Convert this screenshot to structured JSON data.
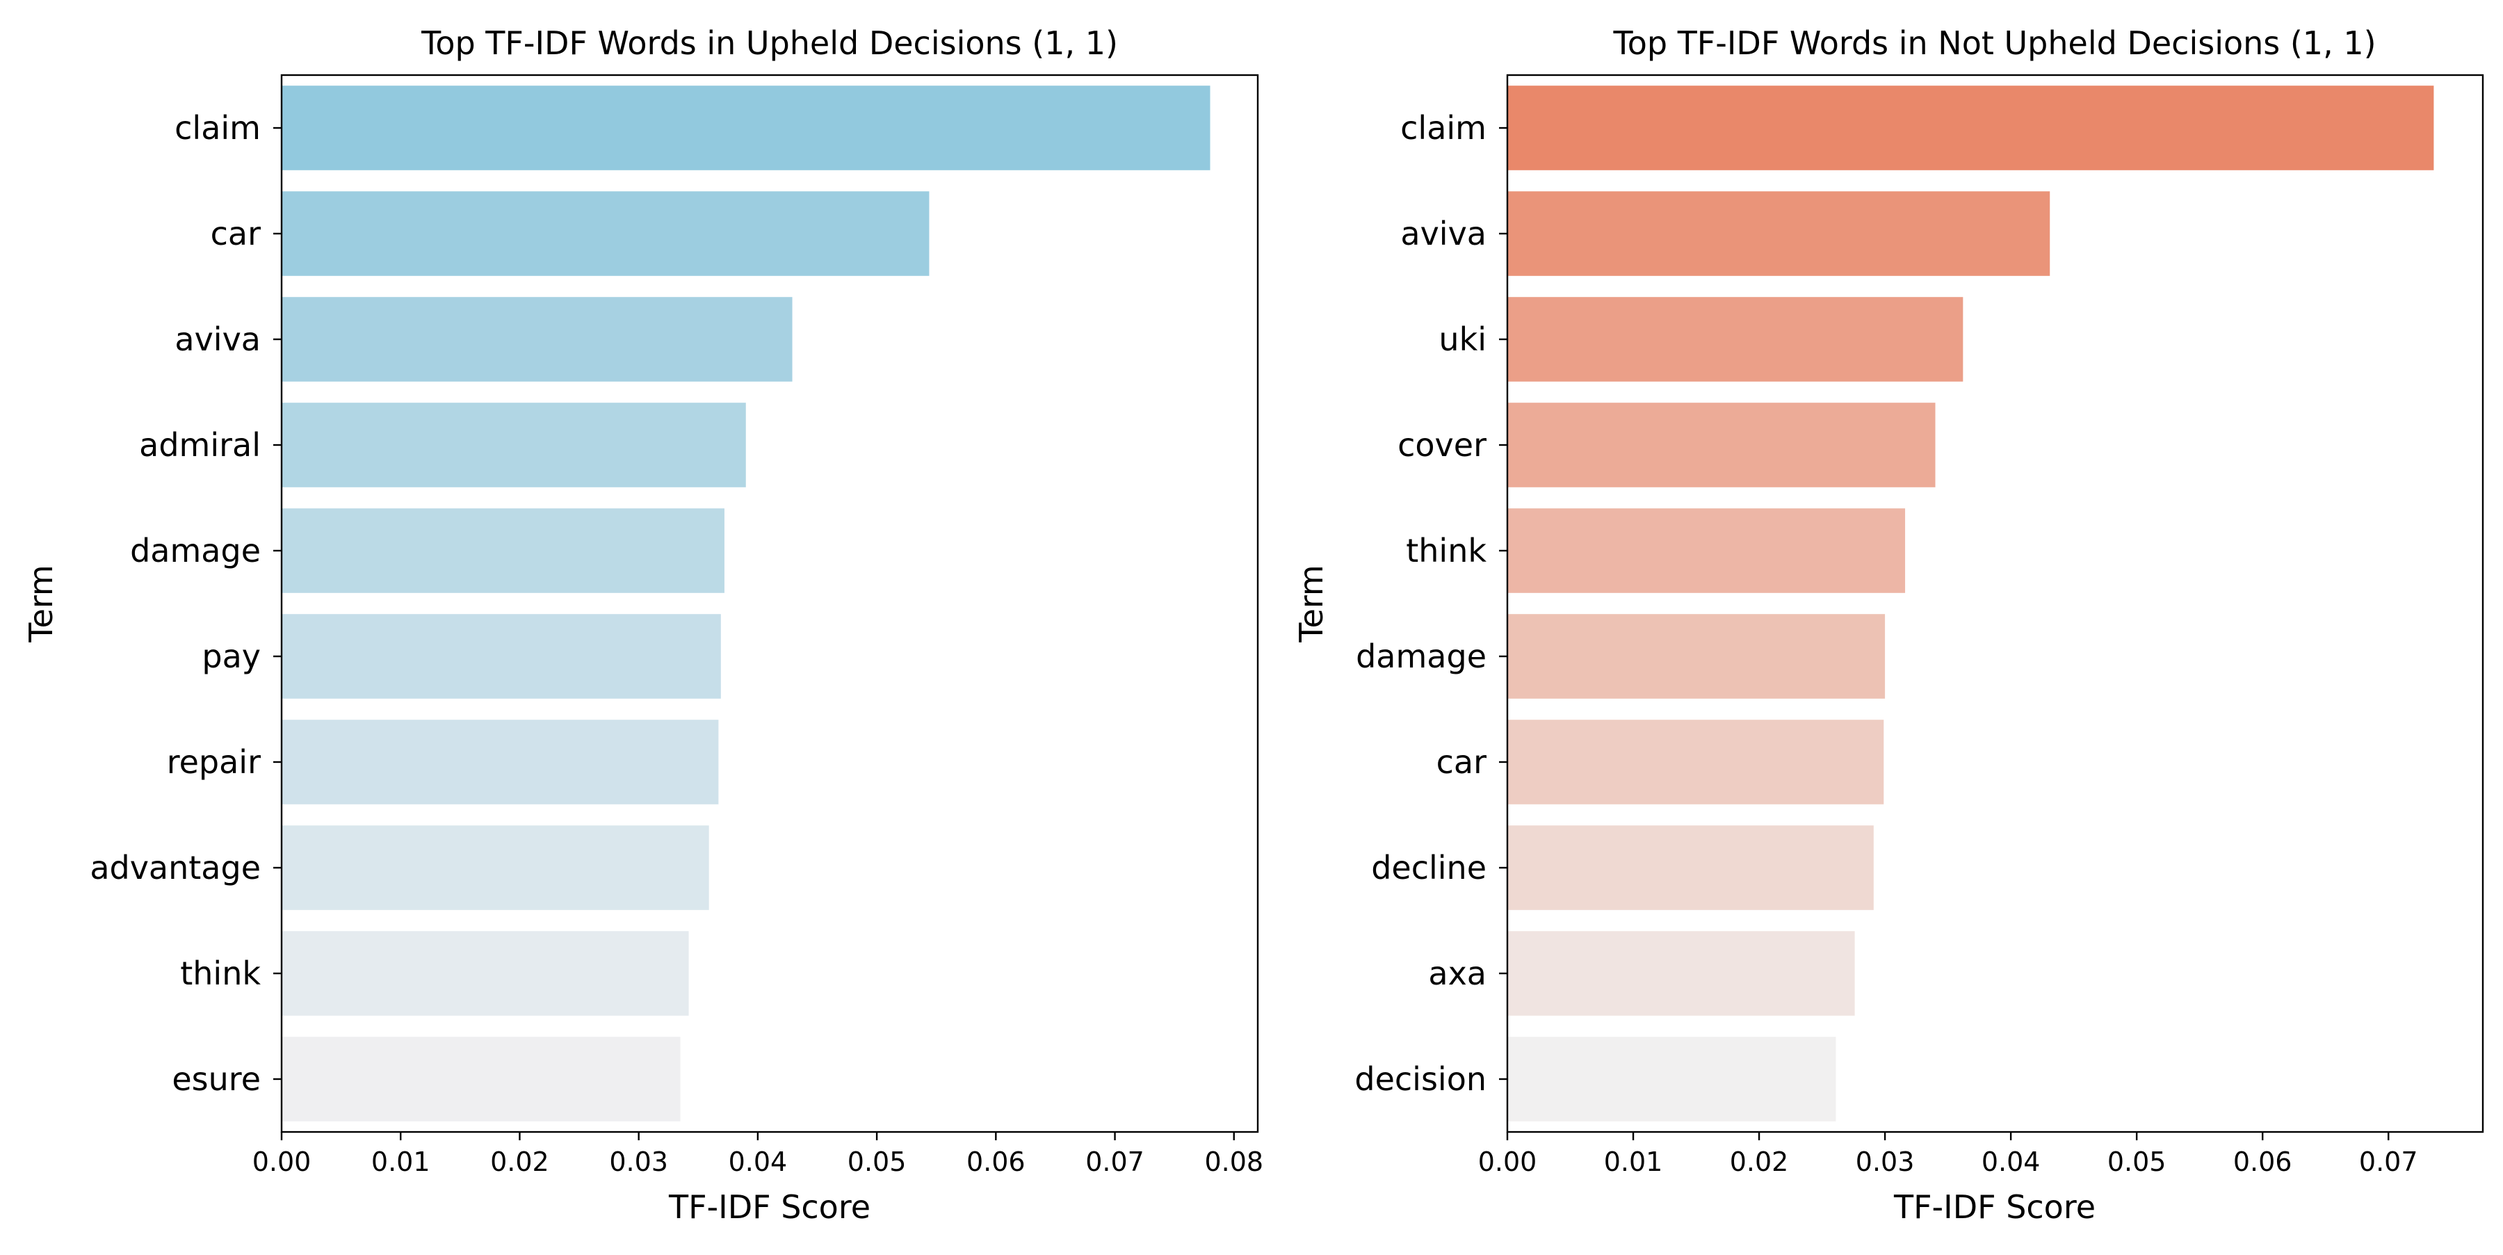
{
  "chart_data": [
    {
      "type": "bar",
      "orientation": "horizontal",
      "title": "Top TF-IDF Words in Upheld Decisions (1, 1)",
      "xlabel": "TF-IDF Score",
      "ylabel": "Term",
      "categories": [
        "claim",
        "car",
        "aviva",
        "admiral",
        "damage",
        "pay",
        "repair",
        "advantage",
        "think",
        "esure"
      ],
      "values": [
        0.078,
        0.0544,
        0.0429,
        0.039,
        0.0372,
        0.0369,
        0.0367,
        0.0359,
        0.0342,
        0.0335
      ],
      "xlim": [
        0,
        0.082
      ],
      "xticks": [
        0.0,
        0.01,
        0.02,
        0.03,
        0.04,
        0.05,
        0.06,
        0.07,
        0.08
      ],
      "xtick_labels": [
        "0.00",
        "0.01",
        "0.02",
        "0.03",
        "0.04",
        "0.05",
        "0.06",
        "0.07",
        "0.08"
      ],
      "palette": {
        "from": "#92c9de",
        "to": "#efeff1"
      },
      "grid": false,
      "legend": "none"
    },
    {
      "type": "bar",
      "orientation": "horizontal",
      "title": "Top TF-IDF Words in Not Upheld Decisions (1, 1)",
      "xlabel": "TF-IDF Score",
      "ylabel": "Term",
      "categories": [
        "claim",
        "aviva",
        "uki",
        "cover",
        "think",
        "damage",
        "car",
        "decline",
        "axa",
        "decision"
      ],
      "values": [
        0.0736,
        0.0431,
        0.0362,
        0.034,
        0.0316,
        0.03,
        0.0299,
        0.0291,
        0.0276,
        0.0261
      ],
      "xlim": [
        0,
        0.0775
      ],
      "xticks": [
        0.0,
        0.01,
        0.02,
        0.03,
        0.04,
        0.05,
        0.06,
        0.07
      ],
      "xtick_labels": [
        "0.00",
        "0.01",
        "0.02",
        "0.03",
        "0.04",
        "0.05",
        "0.06",
        "0.07"
      ],
      "palette": {
        "from": "#e9886a",
        "to": "#f1f0f0"
      },
      "grid": false,
      "legend": "none"
    }
  ]
}
